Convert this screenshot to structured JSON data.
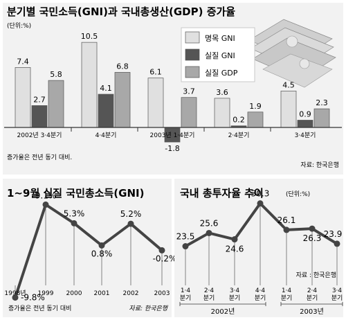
{
  "chart_data": [
    {
      "type": "bar",
      "title": "분기별 국민소득(GNI)과 국내총생산(GDP) 증가율",
      "unit_label": "(단위:%)",
      "categories": [
        "2002년 3·4분기",
        "4·4분기",
        "2003년 1·4분기",
        "2·4분기",
        "3·4분기"
      ],
      "series": [
        {
          "name": "명목 GNI",
          "values": [
            7.4,
            10.5,
            6.1,
            3.6,
            4.5
          ],
          "color": "#e0e0e0"
        },
        {
          "name": "실질 GNI",
          "values": [
            2.7,
            4.1,
            -1.8,
            0.2,
            0.9
          ],
          "color": "#555555"
        },
        {
          "name": "실질 GDP",
          "values": [
            5.8,
            6.8,
            3.7,
            1.9,
            2.3
          ],
          "color": "#a8a8a8"
        }
      ],
      "value_labels": [
        [
          "7.4",
          "10.5",
          "6.1",
          "3.6",
          "4.5"
        ],
        [
          "2.7",
          "4.1",
          "-1.8",
          "0.2",
          "0.9"
        ],
        [
          "5.8",
          "6.8",
          "3.7",
          "1.9",
          "2.3"
        ]
      ],
      "ylim": [
        -2.5,
        11.5
      ],
      "note": "증가율은 전년 동기 대비.",
      "source": "자료: 한국은행",
      "legend_position": "top-right"
    },
    {
      "type": "line",
      "title": "1~9월 실질 국민총소득(GNI)",
      "x": [
        "1998년",
        "1999",
        "2000",
        "2001",
        "2002",
        "2003"
      ],
      "y": [
        -9.8,
        9.1,
        5.3,
        0.8,
        5.2,
        -0.2
      ],
      "value_labels": [
        "-9.8%",
        "9.1%",
        "5.3%",
        "0.8%",
        "5.2%",
        "-0.2%"
      ],
      "ylim": [
        -11,
        11
      ],
      "note": "증가율은 전년 동기 대비",
      "source": "자료: 한국은행"
    },
    {
      "type": "line",
      "title": "국내 총투자율 추이",
      "unit_label": "(단위:%)",
      "x": [
        "1·4 분기",
        "2·4 분기",
        "3·4 분기",
        "4·4 분기",
        "1·4 분기",
        "2·4 분기",
        "3·4 분기"
      ],
      "year_groups": [
        {
          "label": "2002년",
          "count": 4
        },
        {
          "label": "2003년",
          "count": 3
        }
      ],
      "y": [
        23.5,
        25.6,
        24.6,
        30.3,
        26.1,
        26.3,
        23.9
      ],
      "value_labels": [
        "23.5",
        "25.6",
        "24.6",
        "30.3",
        "26.1",
        "26.3",
        "23.9"
      ],
      "ylim": [
        20,
        32
      ],
      "source": "자료 : 한국은행"
    }
  ]
}
